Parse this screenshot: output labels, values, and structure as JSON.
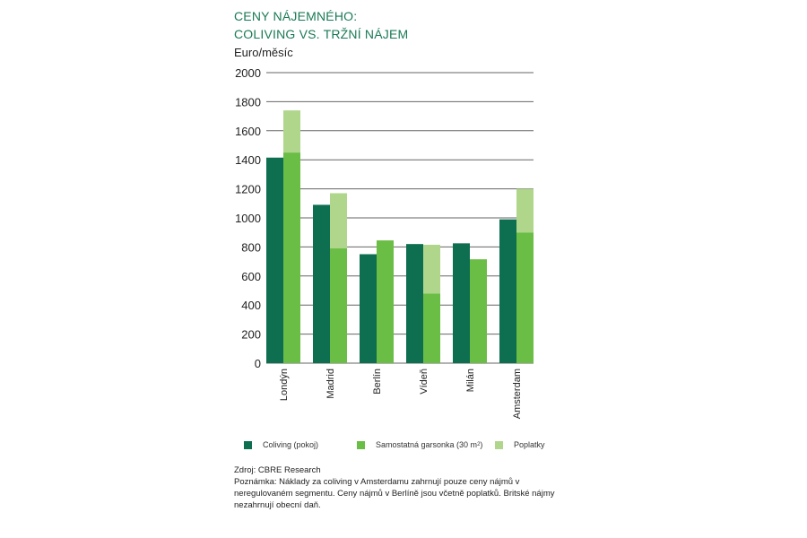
{
  "chart_data": {
    "type": "bar",
    "title_lines": [
      "CENY NÁJEMNÉHO:",
      "COLIVING VS. TRŽNÍ NÁJEM"
    ],
    "ylabel": "Euro/měsíc",
    "ylim": [
      0,
      2000
    ],
    "yticks": [
      0,
      200,
      400,
      600,
      800,
      1000,
      1200,
      1400,
      1600,
      1800,
      2000
    ],
    "grid": true,
    "legend_placement": "bottom",
    "categories": [
      "Londýn",
      "Madrid",
      "Berlín",
      "Vídeň",
      "Milán",
      "Amsterdam"
    ],
    "series": [
      {
        "name": "Coliving (pokoj)",
        "color": "#0e6e50",
        "stack": "a",
        "values": [
          1415,
          1090,
          750,
          820,
          825,
          990
        ]
      },
      {
        "name": "Samostatná garsonka (30 m²)",
        "color": "#6abd45",
        "stack": "b",
        "values": [
          1450,
          790,
          845,
          480,
          715,
          900
        ]
      },
      {
        "name": "Poplatky",
        "color": "#b0d68c",
        "stack": "b",
        "values": [
          290,
          380,
          0,
          335,
          0,
          300
        ]
      }
    ]
  },
  "legend": {
    "items": [
      "Coliving (pokoj)",
      "Samostatná garsonka (30 m",
      "Poplatky"
    ],
    "superscript": "2",
    "close": ")"
  },
  "notes": {
    "source": "Zdroj: CBRE Research",
    "note": "Poznámka: Náklady za coliving v Amsterdamu zahrnují pouze ceny nájmů v neregulovaném segmentu. Ceny nájmů v Berlíně jsou včetně poplatků. Britské nájmy nezahrnují obecní daň."
  }
}
